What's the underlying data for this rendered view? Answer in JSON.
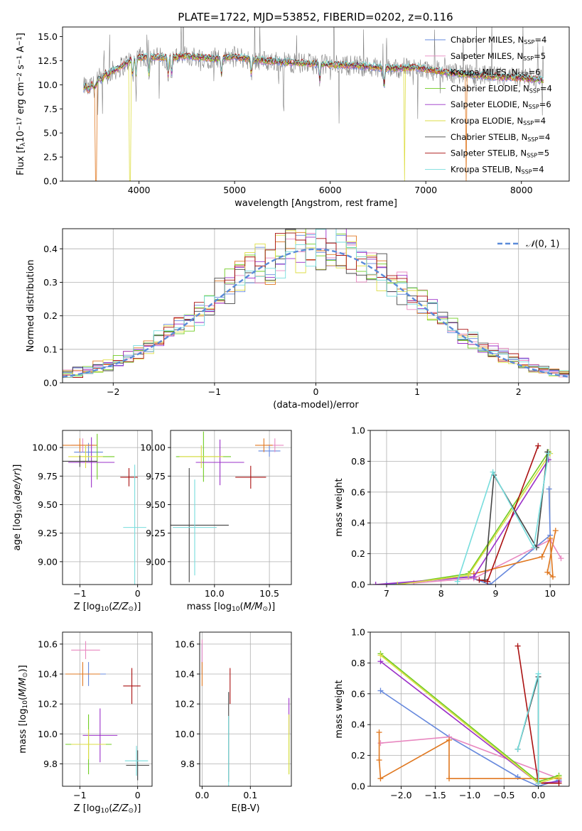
{
  "figure": {
    "title": "PLATE=1722, MJD=53852, FIBERID=0202, z=0.116"
  },
  "model_names": [
    "Chabrier MILES",
    "Salpeter MILES",
    "Kroupa MILES",
    "Chabrier ELODIE",
    "Salpeter ELODIE",
    "Kroupa ELODIE",
    "Chabrier STELIB",
    "Salpeter STELIB",
    "Kroupa STELIB"
  ],
  "model_nssp": [
    4,
    5,
    6,
    4,
    6,
    4,
    4,
    5,
    4
  ],
  "model_colors": [
    "#6688dd",
    "#e888c0",
    "#e07820",
    "#70cc20",
    "#9b30c8",
    "#dddd44",
    "#444444",
    "#aa1111",
    "#77dddd"
  ],
  "chart_data": [
    {
      "id": "spectrum",
      "type": "line",
      "title": "PLATE=1722, MJD=53852, FIBERID=0202, z=0.116",
      "xlabel": "wavelength [Angstrom, rest frame]",
      "ylabel": "Flux [fλ10⁻¹⁷ erg cm⁻² s⁻¹ A⁻¹]",
      "xlim": [
        3200,
        8500
      ],
      "ylim": [
        0,
        16
      ],
      "xticks": [
        4000,
        5000,
        6000,
        7000,
        8000
      ],
      "xtick_labels": [
        "4000",
        "5000",
        "6000",
        "7000",
        "8000"
      ],
      "yticks": [
        0.0,
        2.5,
        5.0,
        7.5,
        10.0,
        12.5,
        15.0
      ],
      "ytick_labels": [
        "0.0",
        "2.5",
        "5.0",
        "7.5",
        "10.0",
        "12.5",
        "15.0"
      ],
      "legend_position": "top-right",
      "legend_entries": [
        "Chabrier MILES, N_SSP=4",
        "Salpeter MILES, N_SSP=5",
        "Kroupa MILES, N_SSP=6",
        "Chabrier ELODIE, N_SSP=4",
        "Salpeter ELODIE, N_SSP=6",
        "Kroupa ELODIE, N_SSP=4",
        "Chabrier STELIB, N_SSP=4",
        "Salpeter STELIB, N_SSP=5",
        "Kroupa STELIB, N_SSP=4"
      ],
      "observed_color": "#808080",
      "continuum": {
        "x": [
          3420,
          3520,
          3600,
          3700,
          3800,
          3950,
          4100,
          4300,
          4500,
          4800,
          5000,
          5300,
          5600,
          6000,
          6300,
          6600,
          6900,
          7200,
          7500,
          7800,
          8000,
          8230
        ],
        "y": [
          9.6,
          9.8,
          10.6,
          11.3,
          11.8,
          12.8,
          12.9,
          12.8,
          13.0,
          12.7,
          12.9,
          12.5,
          12.3,
          12.1,
          12.0,
          11.7,
          11.8,
          11.3,
          11.0,
          10.8,
          10.7,
          10.5
        ]
      },
      "absorption_features": [
        3934,
        3969,
        4102,
        4305,
        4340,
        4861,
        5175,
        5890,
        6563
      ],
      "model_dropouts": [
        {
          "x": 3550,
          "color": "#e07820"
        },
        {
          "x": 3905,
          "color": "#dddd44"
        },
        {
          "x": 6780,
          "color": "#dddd44"
        },
        {
          "x": 7420,
          "color": "#e07820"
        }
      ]
    },
    {
      "id": "residuals",
      "type": "step",
      "xlabel": "(data-model)/error",
      "ylabel": "Normed distribution",
      "xlim": [
        -2.5,
        2.5
      ],
      "ylim": [
        0,
        0.46
      ],
      "xticks": [
        -2,
        -1,
        0,
        1,
        2
      ],
      "xtick_labels": [
        "−2",
        "−1",
        "0",
        "1",
        "2"
      ],
      "yticks": [
        0.0,
        0.1,
        0.2,
        0.3,
        0.4
      ],
      "ytick_labels": [
        "0.0",
        "0.1",
        "0.2",
        "0.3",
        "0.4"
      ],
      "legend_position": "top-right",
      "legend_entries": [
        "𝒩(0, 1)"
      ],
      "reference_curve": {
        "name": "N(0,1)",
        "mean": 0,
        "sigma": 1,
        "color": "#5b8bd9"
      },
      "bin_range": [
        -2.5,
        2.5
      ],
      "bins": 50
    },
    {
      "id": "age-vs-z",
      "type": "errorbar",
      "xlabel": "Z [log₁₀(Z/Z⊙)]",
      "ylabel": "age  [log₁₀(age/yr)]",
      "xlim": [
        -1.3,
        0.25
      ],
      "ylim": [
        8.8,
        10.15
      ],
      "xticks": [
        -1,
        0
      ],
      "xtick_labels": [
        "−1",
        "0"
      ],
      "yticks": [
        9.0,
        9.25,
        9.5,
        9.75,
        10.0
      ],
      "ytick_labels": [
        "9.00",
        "9.25",
        "9.50",
        "9.75",
        "10.00"
      ],
      "points": [
        {
          "model": 0,
          "x": -0.85,
          "xerr": 0.25,
          "y": 9.96,
          "yerr": 0.08
        },
        {
          "model": 1,
          "x": -0.95,
          "xerr": 0.2,
          "y": 10.02,
          "yerr": 0.06
        },
        {
          "model": 2,
          "x": -1.0,
          "xerr": 0.3,
          "y": 10.02,
          "yerr": 0.06
        },
        {
          "model": 3,
          "x": -0.7,
          "xerr": 0.3,
          "y": 9.92,
          "yerr": 0.2
        },
        {
          "model": 4,
          "x": -0.8,
          "xerr": 0.4,
          "y": 9.87,
          "yerr": 0.22
        },
        {
          "model": 5,
          "x": -0.9,
          "xerr": 0.3,
          "y": 9.92,
          "yerr": 0.1
        },
        {
          "model": 6,
          "x": -1.0,
          "xerr": 0.3,
          "y": 9.88,
          "yerr": 0.05
        },
        {
          "model": 7,
          "x": -0.15,
          "xerr": 0.15,
          "y": 9.74,
          "yerr": 0.08
        },
        {
          "model": 8,
          "x": -0.05,
          "xerr": 0.2,
          "y": 9.3,
          "yerr": 0.55
        }
      ]
    },
    {
      "id": "age-vs-mass",
      "type": "errorbar",
      "xlabel": "mass [log₁₀(M/M⊙)]",
      "ylabel": "",
      "xlim": [
        9.6,
        10.7
      ],
      "ylim": [
        8.8,
        10.15
      ],
      "xticks": [
        10.0,
        10.5
      ],
      "xtick_labels": [
        "10.0",
        "10.5"
      ],
      "yticks": [
        9.0,
        9.25,
        9.5,
        9.75,
        10.0
      ],
      "ytick_labels": [
        "9.00",
        "9.25",
        "9.50",
        "9.75",
        "10.00"
      ],
      "points": [
        {
          "model": 0,
          "x": 10.5,
          "xerr": 0.1,
          "y": 9.97,
          "yerr": 0.05
        },
        {
          "model": 1,
          "x": 10.55,
          "xerr": 0.08,
          "y": 10.02,
          "yerr": 0.06
        },
        {
          "model": 2,
          "x": 10.45,
          "xerr": 0.08,
          "y": 10.02,
          "yerr": 0.06
        },
        {
          "model": 3,
          "x": 9.9,
          "xerr": 0.25,
          "y": 9.92,
          "yerr": 0.22
        },
        {
          "model": 4,
          "x": 10.05,
          "xerr": 0.22,
          "y": 9.87,
          "yerr": 0.2
        },
        {
          "model": 5,
          "x": 9.88,
          "xerr": 0.2,
          "y": 9.92,
          "yerr": 0.1
        },
        {
          "model": 6,
          "x": 9.77,
          "xerr": 0.36,
          "y": 9.32,
          "yerr": 0.5
        },
        {
          "model": 7,
          "x": 10.33,
          "xerr": 0.14,
          "y": 9.74,
          "yerr": 0.1
        },
        {
          "model": 8,
          "x": 9.82,
          "xerr": 0.2,
          "y": 9.3,
          "yerr": 0.42
        }
      ]
    },
    {
      "id": "weight-vs-age",
      "type": "line",
      "xlabel": "age  [log₁₀(age/yr)]",
      "ylabel": "mass weight",
      "xlim": [
        6.7,
        10.35
      ],
      "ylim": [
        0,
        1.0
      ],
      "xticks": [
        7,
        8,
        9,
        10
      ],
      "xtick_labels": [
        "7",
        "8",
        "9",
        "10"
      ],
      "yticks": [
        0.0,
        0.2,
        0.4,
        0.6,
        0.8,
        1.0
      ],
      "ytick_labels": [
        "0.0",
        "0.2",
        "0.4",
        "0.6",
        "0.8",
        "1.0"
      ],
      "series": [
        {
          "model": 0,
          "x": [
            7.0,
            8.5,
            8.9,
            10.0,
            9.98
          ],
          "y": [
            0.0,
            0.05,
            0.0,
            0.32,
            0.62
          ]
        },
        {
          "model": 1,
          "x": [
            7.5,
            8.6,
            10.0,
            10.2
          ],
          "y": [
            0.01,
            0.04,
            0.29,
            0.17
          ]
        },
        {
          "model": 2,
          "x": [
            8.6,
            9.85,
            10.0,
            10.05,
            9.95,
            10.1
          ],
          "y": [
            0.07,
            0.18,
            0.3,
            0.05,
            0.08,
            0.35
          ]
        },
        {
          "model": 3,
          "x": [
            7.2,
            8.5,
            9.97
          ],
          "y": [
            0.0,
            0.07,
            0.86
          ]
        },
        {
          "model": 4,
          "x": [
            6.8,
            8.6,
            9.97
          ],
          "y": [
            0.0,
            0.05,
            0.81
          ]
        },
        {
          "model": 5,
          "x": [
            7.2,
            8.5,
            10.0
          ],
          "y": [
            0.0,
            0.06,
            0.85
          ]
        },
        {
          "model": 6,
          "x": [
            8.8,
            8.97,
            9.75,
            9.95
          ],
          "y": [
            0.03,
            0.71,
            0.24,
            0.86
          ]
        },
        {
          "model": 7,
          "x": [
            8.7,
            8.85,
            9.78
          ],
          "y": [
            0.03,
            0.02,
            0.9
          ]
        },
        {
          "model": 8,
          "x": [
            8.3,
            8.95,
            9.7,
            9.97
          ],
          "y": [
            0.02,
            0.73,
            0.24,
            0.85
          ]
        }
      ]
    },
    {
      "id": "mass-vs-z",
      "type": "errorbar",
      "xlabel": "Z [log₁₀(Z/Z⊙)]",
      "ylabel": "mass [log₁₀(M/M⊙)]",
      "xlim": [
        -1.3,
        0.25
      ],
      "ylim": [
        9.65,
        10.68
      ],
      "xticks": [
        -1,
        0
      ],
      "xtick_labels": [
        "−1",
        "0"
      ],
      "yticks": [
        9.8,
        10.0,
        10.2,
        10.4,
        10.6
      ],
      "ytick_labels": [
        "9.8",
        "10.0",
        "10.2",
        "10.4",
        "10.6"
      ],
      "points": [
        {
          "model": 0,
          "x": -0.85,
          "xerr": 0.3,
          "y": 10.4,
          "yerr": 0.08
        },
        {
          "model": 1,
          "x": -0.9,
          "xerr": 0.25,
          "y": 10.56,
          "yerr": 0.06
        },
        {
          "model": 2,
          "x": -0.95,
          "xerr": 0.3,
          "y": 10.4,
          "yerr": 0.08
        },
        {
          "model": 3,
          "x": -0.85,
          "xerr": 0.4,
          "y": 9.93,
          "yerr": 0.2
        },
        {
          "model": 4,
          "x": -0.65,
          "xerr": 0.3,
          "y": 9.99,
          "yerr": 0.18
        },
        {
          "model": 5,
          "x": -0.85,
          "xerr": 0.3,
          "y": 9.93,
          "yerr": 0.1
        },
        {
          "model": 6,
          "x": 0.0,
          "xerr": 0.2,
          "y": 9.79,
          "yerr": 0.1
        },
        {
          "model": 7,
          "x": -0.1,
          "xerr": 0.15,
          "y": 10.32,
          "yerr": 0.12
        },
        {
          "model": 8,
          "x": -0.02,
          "xerr": 0.2,
          "y": 9.82,
          "yerr": 0.1
        }
      ]
    },
    {
      "id": "mass-vs-ebv",
      "type": "errorbar",
      "xlabel": "E(B-V)",
      "ylabel": "",
      "xlim": [
        -0.005,
        0.185
      ],
      "ylim": [
        9.65,
        10.68
      ],
      "xticks": [
        0.0,
        0.1
      ],
      "xtick_labels": [
        "0.0",
        "0.1"
      ],
      "yticks": [
        9.8,
        10.0,
        10.2,
        10.4,
        10.6
      ],
      "ytick_labels": [
        "9.8",
        "10.0",
        "10.2",
        "10.4",
        "10.6"
      ],
      "points": [
        {
          "model": 0,
          "x": 0.0,
          "y": 10.5,
          "yerr": 0.1
        },
        {
          "model": 1,
          "x": 0.0,
          "y": 10.55,
          "yerr": 0.08
        },
        {
          "model": 2,
          "x": 0.0,
          "y": 10.4,
          "yerr": 0.08
        },
        {
          "model": 3,
          "x": 0.18,
          "y": 9.93,
          "yerr": 0.2
        },
        {
          "model": 4,
          "x": 0.18,
          "y": 10.12,
          "yerr": 0.12
        },
        {
          "model": 5,
          "x": 0.18,
          "y": 9.93,
          "yerr": 0.2
        },
        {
          "model": 6,
          "x": 0.055,
          "y": 9.98,
          "yerr": 0.3
        },
        {
          "model": 7,
          "x": 0.058,
          "y": 10.32,
          "yerr": 0.12
        },
        {
          "model": 8,
          "x": 0.055,
          "y": 9.82,
          "yerr": 0.3
        }
      ]
    },
    {
      "id": "weight-vs-z",
      "type": "line",
      "xlabel": "Z [log₁₀(Z/Z⊙)]",
      "ylabel": "mass weight",
      "xlim": [
        -2.45,
        0.45
      ],
      "ylim": [
        0,
        1.0
      ],
      "xticks": [
        -2.0,
        -1.5,
        -1.0,
        -0.5,
        0.0
      ],
      "xtick_labels": [
        "−2.0",
        "−1.5",
        "−1.0",
        "−0.5",
        "0.0"
      ],
      "yticks": [
        0.0,
        0.2,
        0.4,
        0.6,
        0.8,
        1.0
      ],
      "ytick_labels": [
        "0.0",
        "0.2",
        "0.4",
        "0.6",
        "0.8",
        "1.0"
      ],
      "series": [
        {
          "model": 0,
          "x": [
            -2.3,
            -1.3,
            -0.3,
            0.0,
            0.3
          ],
          "y": [
            0.62,
            0.32,
            0.06,
            0.0,
            0.04
          ]
        },
        {
          "model": 1,
          "x": [
            -2.3,
            -1.3,
            0.3
          ],
          "y": [
            0.28,
            0.32,
            0.05
          ]
        },
        {
          "model": 2,
          "x": [
            -2.32,
            -2.32,
            -2.3,
            -1.3,
            -1.3,
            0.3,
            0.3
          ],
          "y": [
            0.35,
            0.17,
            0.05,
            0.3,
            0.05,
            0.05,
            0.03
          ]
        },
        {
          "model": 3,
          "x": [
            -2.3,
            0.0,
            0.3
          ],
          "y": [
            0.86,
            0.03,
            0.07
          ]
        },
        {
          "model": 4,
          "x": [
            -2.3,
            0.0,
            0.3
          ],
          "y": [
            0.81,
            0.02,
            0.03
          ]
        },
        {
          "model": 5,
          "x": [
            -2.3,
            0.0,
            0.3
          ],
          "y": [
            0.85,
            0.02,
            0.06
          ]
        },
        {
          "model": 6,
          "x": [
            -0.3,
            0.0,
            0.0
          ],
          "y": [
            0.24,
            0.71,
            0.02
          ]
        },
        {
          "model": 7,
          "x": [
            -0.3,
            0.0,
            0.3
          ],
          "y": [
            0.91,
            0.02,
            0.02
          ]
        },
        {
          "model": 8,
          "x": [
            -0.3,
            0.0,
            0.0
          ],
          "y": [
            0.24,
            0.73,
            0.02
          ]
        }
      ]
    }
  ]
}
